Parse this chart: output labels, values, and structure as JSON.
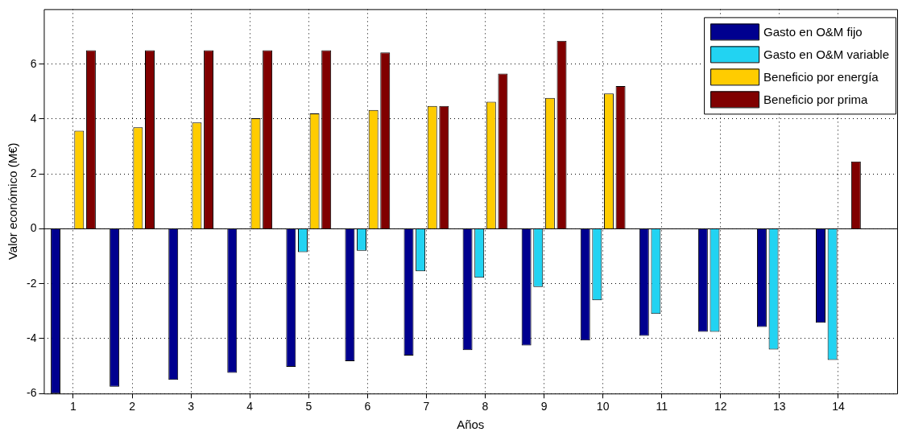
{
  "chart_data": {
    "type": "bar",
    "xlabel": "Años",
    "ylabel": "Valor económico (M€)",
    "x": [
      1,
      2,
      3,
      4,
      5,
      6,
      7,
      8,
      9,
      10,
      11,
      12,
      13,
      14
    ],
    "series": [
      {
        "name": "Gasto en O&M fijo",
        "color": "#00008f",
        "values": [
          -6.0,
          -5.75,
          -5.5,
          -5.25,
          -5.03,
          -4.82,
          -4.62,
          -4.42,
          -4.25,
          -4.07,
          -3.9,
          -3.75,
          -3.58,
          -3.42
        ]
      },
      {
        "name": "Gasto en O&M variable",
        "color": "#22d3f2",
        "values": [
          0,
          0,
          0,
          0,
          -0.85,
          -0.8,
          -1.55,
          -1.78,
          -2.12,
          -2.6,
          -3.1,
          -3.75,
          -4.4,
          -4.78
        ]
      },
      {
        "name": "Beneficio por energía",
        "color": "#ffcc00",
        "values": [
          3.57,
          3.7,
          3.87,
          4.03,
          4.2,
          4.33,
          4.47,
          4.63,
          4.77,
          4.93,
          null,
          null,
          null,
          null
        ]
      },
      {
        "name": "Beneficio por prima",
        "color": "#800000",
        "values": [
          6.5,
          6.5,
          6.5,
          6.5,
          6.5,
          6.42,
          4.47,
          5.65,
          6.85,
          5.2,
          null,
          null,
          null,
          2.45
        ]
      }
    ],
    "xlim": [
      0.5,
      15
    ],
    "xticks": [
      1,
      2,
      3,
      4,
      5,
      6,
      7,
      8,
      9,
      10,
      11,
      12,
      13,
      14
    ],
    "ylim": [
      -6,
      8
    ],
    "yticks": [
      -6,
      -4,
      -2,
      0,
      2,
      4,
      6
    ],
    "grid": true,
    "legend": "top right"
  }
}
